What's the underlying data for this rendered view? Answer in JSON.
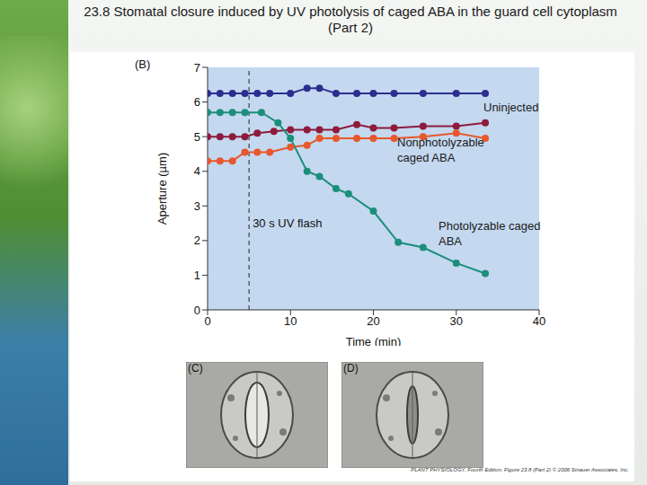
{
  "title": "23.8 Stomatal closure induced by UV photolysis of caged ABA in the guard cell cytoplasm (Part 2)",
  "chart_data": {
    "type": "line",
    "panel_label": "(B)",
    "x_label": "Time (min)",
    "y_label": "Aperture (µm)",
    "xlim": [
      0,
      40
    ],
    "xticks": [
      0,
      10,
      20,
      30,
      40
    ],
    "ylim": [
      0,
      7
    ],
    "yticks": [
      0,
      1,
      2,
      3,
      4,
      5,
      6,
      7
    ],
    "grid": false,
    "annotations": [
      {
        "text": "30 s UV flash",
        "x": 5
      }
    ],
    "series": [
      {
        "name": "Uninjected",
        "color": "#2b2f8f",
        "x": [
          0,
          1.5,
          3,
          4.5,
          6,
          7.5,
          10,
          12,
          13.5,
          15.5,
          18,
          20,
          22.5,
          26,
          30,
          33.5
        ],
        "values": [
          6.25,
          6.25,
          6.25,
          6.25,
          6.25,
          6.25,
          6.25,
          6.4,
          6.4,
          6.25,
          6.25,
          6.25,
          6.25,
          6.25,
          6.25,
          6.25
        ]
      },
      {
        "name": "Nonphotolyzable caged ABA",
        "color": "#8e1b3c",
        "x": [
          0,
          1.5,
          3,
          4.5,
          6,
          8,
          10,
          12,
          13.5,
          15.5,
          18,
          20,
          22.5,
          26,
          30,
          33.5
        ],
        "values": [
          5.0,
          5.0,
          5.0,
          5.0,
          5.1,
          5.15,
          5.2,
          5.2,
          5.2,
          5.2,
          5.35,
          5.25,
          5.25,
          5.3,
          5.3,
          5.4
        ]
      },
      {
        "name": "Nonphotolyzable caged ABA",
        "color": "#e8582c",
        "x": [
          0,
          1.5,
          3,
          4.5,
          6,
          7.5,
          10,
          12,
          13.5,
          15.5,
          18,
          20,
          22.5,
          26,
          30,
          33.5
        ],
        "values": [
          4.3,
          4.3,
          4.3,
          4.55,
          4.55,
          4.55,
          4.7,
          4.75,
          4.95,
          4.95,
          4.95,
          4.95,
          4.95,
          5.0,
          5.1,
          4.95
        ]
      },
      {
        "name": "Photolyzable caged ABA",
        "color": "#1b8f7b",
        "x": [
          0,
          1.5,
          3,
          4.5,
          6.5,
          8.5,
          10,
          12,
          13.5,
          15.5,
          17,
          20,
          23,
          26,
          30,
          33.5
        ],
        "values": [
          5.7,
          5.7,
          5.7,
          5.7,
          5.7,
          5.4,
          4.95,
          4.0,
          3.85,
          3.5,
          3.35,
          2.85,
          1.95,
          1.8,
          1.35,
          1.05
        ]
      }
    ]
  },
  "panels": [
    "(C)",
    "(D)"
  ],
  "credit": "PLANT PHYSIOLOGY, Fourth Edition, Figure 23.8 (Part 2) © 2006 Sinauer Associates, Inc."
}
